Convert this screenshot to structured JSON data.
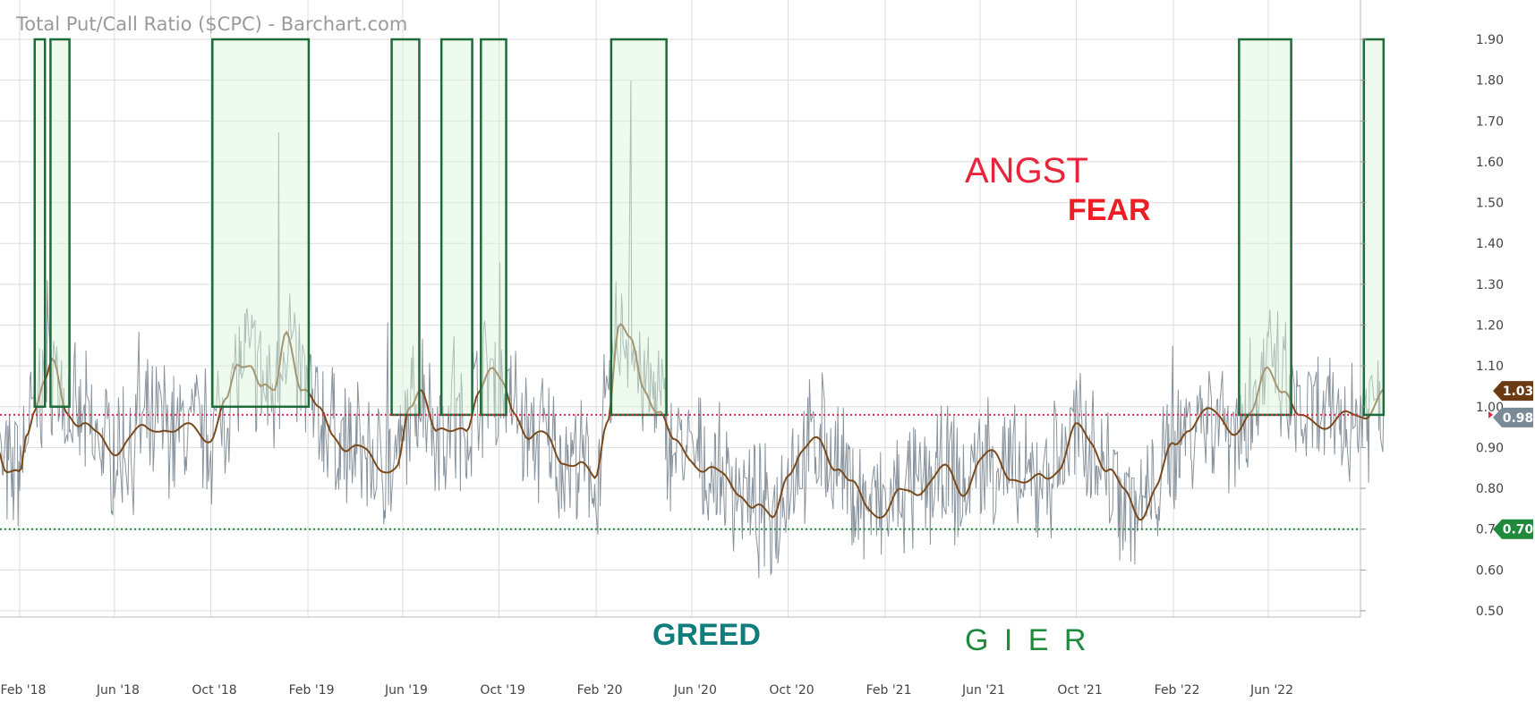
{
  "chart_data": {
    "type": "line",
    "title": "Total Put/Call Ratio ($CPC) - Barchart.com",
    "x_range": [
      "2018-01-01",
      "2022-10-25"
    ],
    "ylim": [
      0.5,
      1.9
    ],
    "y_scale": "linear",
    "grid": true,
    "y_ticks": [
      "1.90",
      "1.80",
      "1.70",
      "1.60",
      "1.50",
      "1.40",
      "1.30",
      "1.20",
      "1.10",
      "1.00",
      "0.90",
      "0.80",
      "0.70",
      "0.60",
      "0.50"
    ],
    "x_ticks": [
      {
        "date": "2018-02-01",
        "label": "Feb '18"
      },
      {
        "date": "2018-06-01",
        "label": "Jun '18"
      },
      {
        "date": "2018-10-01",
        "label": "Oct '18"
      },
      {
        "date": "2019-02-01",
        "label": "Feb '19"
      },
      {
        "date": "2019-06-01",
        "label": "Jun '19"
      },
      {
        "date": "2019-10-01",
        "label": "Oct '19"
      },
      {
        "date": "2020-02-01",
        "label": "Feb '20"
      },
      {
        "date": "2020-06-01",
        "label": "Jun '20"
      },
      {
        "date": "2020-10-01",
        "label": "Oct '20"
      },
      {
        "date": "2021-02-01",
        "label": "Feb '21"
      },
      {
        "date": "2021-06-01",
        "label": "Jun '21"
      },
      {
        "date": "2021-10-01",
        "label": "Oct '21"
      },
      {
        "date": "2022-02-01",
        "label": "Feb '22"
      },
      {
        "date": "2022-06-01",
        "label": "Jun '22"
      }
    ],
    "reference_lines": [
      {
        "value": 0.98,
        "color": "#e0284a",
        "style": "dotted"
      },
      {
        "value": 0.7,
        "color": "#1f8a3c",
        "style": "dotted"
      }
    ],
    "badges": [
      {
        "label": "1.03",
        "value": 1.03,
        "color": "#6b3a12"
      },
      {
        "label": "0.98",
        "value": 0.98,
        "color": "#7a8a96"
      },
      {
        "label": "0.70",
        "value": 0.7,
        "color": "#1f8a3c"
      }
    ],
    "series": [
      {
        "type": "moving-average",
        "color": "#7a4a1c",
        "x": [
          "2018-01-01",
          "2018-01-15",
          "2018-02-01",
          "2018-02-10",
          "2018-02-20",
          "2018-03-05",
          "2018-03-15",
          "2018-04-01",
          "2018-04-20",
          "2018-05-10",
          "2018-06-01",
          "2018-06-20",
          "2018-07-10",
          "2018-08-01",
          "2018-08-20",
          "2018-09-10",
          "2018-10-01",
          "2018-10-20",
          "2018-11-05",
          "2018-11-20",
          "2018-12-05",
          "2018-12-20",
          "2019-01-05",
          "2019-01-25",
          "2019-02-15",
          "2019-03-05",
          "2019-03-25",
          "2019-04-15",
          "2019-05-05",
          "2019-05-25",
          "2019-06-10",
          "2019-06-25",
          "2019-07-15",
          "2019-08-01",
          "2019-08-20",
          "2019-09-05",
          "2019-09-20",
          "2019-10-05",
          "2019-10-20",
          "2019-11-10",
          "2019-12-01",
          "2019-12-20",
          "2020-01-10",
          "2020-01-30",
          "2020-02-15",
          "2020-03-01",
          "2020-03-15",
          "2020-04-01",
          "2020-04-20",
          "2020-05-10",
          "2020-05-30",
          "2020-06-20",
          "2020-07-10",
          "2020-08-01",
          "2020-08-20",
          "2020-09-10",
          "2020-10-01",
          "2020-10-20",
          "2020-11-10",
          "2020-12-01",
          "2020-12-20",
          "2021-01-10",
          "2021-02-01",
          "2021-02-20",
          "2021-03-10",
          "2021-04-01",
          "2021-04-20",
          "2021-05-10",
          "2021-06-01",
          "2021-06-20",
          "2021-07-10",
          "2021-08-01",
          "2021-08-20",
          "2021-09-10",
          "2021-10-01",
          "2021-10-20",
          "2021-11-10",
          "2021-12-01",
          "2021-12-20",
          "2022-01-10",
          "2022-02-01",
          "2022-02-20",
          "2022-03-10",
          "2022-04-01",
          "2022-04-20",
          "2022-05-10",
          "2022-06-01",
          "2022-06-20",
          "2022-07-10",
          "2022-08-01",
          "2022-08-20",
          "2022-09-10",
          "2022-10-01",
          "2022-10-25"
        ],
        "values": [
          0.9,
          0.82,
          0.85,
          0.95,
          1.0,
          1.05,
          1.1,
          1.0,
          0.96,
          0.92,
          0.9,
          0.92,
          0.94,
          0.96,
          0.93,
          0.95,
          0.93,
          1.0,
          1.1,
          1.12,
          1.05,
          1.02,
          1.19,
          1.05,
          0.98,
          0.94,
          0.9,
          0.88,
          0.86,
          0.85,
          0.98,
          1.05,
          0.95,
          0.92,
          0.95,
          1.05,
          1.08,
          1.05,
          1.0,
          0.92,
          0.92,
          0.88,
          0.85,
          0.82,
          0.98,
          1.2,
          1.15,
          1.05,
          1.0,
          0.9,
          0.88,
          0.85,
          0.82,
          0.8,
          0.75,
          0.72,
          0.85,
          0.88,
          0.92,
          0.86,
          0.8,
          0.76,
          0.74,
          0.78,
          0.8,
          0.82,
          0.84,
          0.8,
          0.86,
          0.88,
          0.84,
          0.8,
          0.83,
          0.86,
          0.94,
          0.92,
          0.85,
          0.78,
          0.74,
          0.8,
          0.9,
          0.96,
          0.98,
          0.97,
          0.95,
          0.97,
          1.1,
          1.05,
          0.96,
          0.97,
          0.96,
          0.97,
          0.99,
          1.03
        ]
      }
    ]
  },
  "annotations": [
    {
      "text": "ANGST",
      "color": "#e8243c"
    },
    {
      "text": "FEAR",
      "color": "#ee1c24"
    },
    {
      "text": "GREED",
      "color": "#0f7d7b"
    },
    {
      "text": "G I E R",
      "color": "#1f8a3c"
    }
  ],
  "highlight_periods": [
    {
      "start": "2018-02-20",
      "end": "2018-03-05",
      "top": 1.9,
      "bottom": 1.0
    },
    {
      "start": "2018-03-12",
      "end": "2018-04-05",
      "top": 1.9,
      "bottom": 1.0
    },
    {
      "start": "2018-10-03",
      "end": "2019-02-02",
      "top": 1.9,
      "bottom": 1.0
    },
    {
      "start": "2019-05-18",
      "end": "2019-06-22",
      "top": 1.9,
      "bottom": 0.98
    },
    {
      "start": "2019-07-20",
      "end": "2019-08-28",
      "top": 1.9,
      "bottom": 0.98
    },
    {
      "start": "2019-09-08",
      "end": "2019-10-10",
      "top": 1.9,
      "bottom": 0.98
    },
    {
      "start": "2020-02-20",
      "end": "2020-04-30",
      "top": 1.9,
      "bottom": 0.98
    },
    {
      "start": "2022-04-25",
      "end": "2022-06-30",
      "top": 1.9,
      "bottom": 0.98
    },
    {
      "start": "2022-09-30",
      "end": "2022-10-25",
      "top": 1.9,
      "bottom": 0.98
    }
  ],
  "colors": {
    "grid": "#dcdcdc",
    "raw_line": "#7c8893",
    "ma_line": "#7a4a1c",
    "box_fill": "#d9f5d9",
    "box_stroke": "#1e6b3a"
  }
}
